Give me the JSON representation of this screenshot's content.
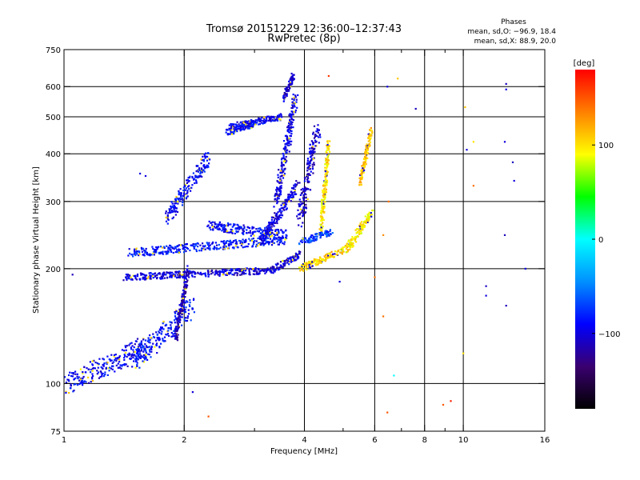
{
  "chart_data": {
    "type": "scatter",
    "title": "Tromsø 20151229 12:36:00–12:37:43",
    "subtitle": "RwPretec (8p)",
    "xlabel": "Frequency [MHz]",
    "ylabel": "Stationary phase Virtual Height [km]",
    "x_scale": "log",
    "y_scale": "log",
    "xlim": [
      1,
      16
    ],
    "ylim": [
      75,
      750
    ],
    "grid": true,
    "x_ticks": [
      {
        "value": 1,
        "label": "1"
      },
      {
        "value": 2,
        "label": "2"
      },
      {
        "value": 4,
        "label": "4"
      },
      {
        "value": 6,
        "label": "6"
      },
      {
        "value": 8,
        "label": "8"
      },
      {
        "value": 10,
        "label": "10"
      },
      {
        "value": 16,
        "label": "16"
      }
    ],
    "x_minor": [
      3,
      5,
      7,
      9
    ],
    "x_grid": [
      2,
      4,
      6,
      8,
      10
    ],
    "y_ticks": [
      {
        "value": 75,
        "label": "75"
      },
      {
        "value": 100,
        "label": "100"
      },
      {
        "value": 200,
        "label": "200"
      },
      {
        "value": 300,
        "label": "300"
      },
      {
        "value": 400,
        "label": "400"
      },
      {
        "value": 500,
        "label": "500"
      },
      {
        "value": 600,
        "label": "600"
      },
      {
        "value": 750,
        "label": "750"
      }
    ],
    "y_grid": [
      100,
      200,
      300,
      400,
      500,
      600
    ],
    "stats": {
      "header": "Phases",
      "line_o": "mean, sd,O: −96.9, 18.4",
      "line_x": "mean, sd,X:  88.9, 20.0"
    },
    "colorbar": {
      "label": "[deg]",
      "range": [
        -180,
        180
      ],
      "ticks": [
        {
          "value": 100,
          "label": "100"
        },
        {
          "value": 0,
          "label": "0"
        },
        {
          "value": -100,
          "label": "−100"
        }
      ],
      "colors": [
        "#000000",
        "#3a0070",
        "#0000ff",
        "#0090ff",
        "#00ffff",
        "#00ff00",
        "#ffff00",
        "#ff8000",
        "#ff0000"
      ]
    },
    "series": [
      {
        "traces": [
          {
            "f1": 1.42,
            "f2": 3.3,
            "h1": 190,
            "h2": 198,
            "ph": -100,
            "spread": 0.04
          },
          {
            "f1": 3.3,
            "f2": 3.9,
            "h1": 198,
            "h2": 218,
            "ph": -100,
            "spread": 0.04
          },
          {
            "f1": 1.45,
            "f2": 3.6,
            "h1": 220,
            "h2": 238,
            "ph": -85,
            "spread": 0.05
          },
          {
            "f1": 3.1,
            "f2": 3.85,
            "h1": 235,
            "h2": 330,
            "ph": -100,
            "spread": 0.06
          },
          {
            "f1": 3.4,
            "f2": 3.8,
            "h1": 300,
            "h2": 560,
            "ph": -100,
            "spread": 0.08
          },
          {
            "f1": 2.3,
            "f2": 3.6,
            "h1": 260,
            "h2": 245,
            "ph": -90,
            "spread": 0.06
          },
          {
            "f1": 3.55,
            "f2": 3.75,
            "h1": 560,
            "h2": 640,
            "ph": -105,
            "spread": 0.04
          },
          {
            "f1": 2.6,
            "f2": 3.5,
            "h1": 470,
            "h2": 500,
            "ph": -95,
            "spread": 0.04
          },
          {
            "f1": 2.55,
            "f2": 3.0,
            "h1": 455,
            "h2": 480,
            "ph": -90,
            "spread": 0.04
          },
          {
            "f1": 3.9,
            "f2": 5.3,
            "h1": 200,
            "h2": 230,
            "ph": 105,
            "spread": 0.04
          },
          {
            "f1": 5.1,
            "f2": 5.9,
            "h1": 225,
            "h2": 280,
            "ph": 95,
            "spread": 0.05
          },
          {
            "f1": 4.4,
            "f2": 4.6,
            "h1": 250,
            "h2": 430,
            "ph": 100,
            "spread": 0.05
          },
          {
            "f1": 5.5,
            "f2": 5.9,
            "h1": 330,
            "h2": 470,
            "ph": 110,
            "spread": 0.04
          },
          {
            "f1": 3.9,
            "f2": 4.7,
            "h1": 235,
            "h2": 250,
            "ph": -70,
            "spread": 0.04
          },
          {
            "f1": 1.02,
            "f2": 1.6,
            "h1": 100,
            "h2": 125,
            "ph": -95,
            "spread": 0.12
          },
          {
            "f1": 1.5,
            "f2": 2.1,
            "h1": 115,
            "h2": 160,
            "ph": -85,
            "spread": 0.12
          },
          {
            "f1": 1.9,
            "f2": 2.05,
            "h1": 130,
            "h2": 200,
            "ph": -110,
            "spread": 0.05
          },
          {
            "f1": 3.9,
            "f2": 4.3,
            "h1": 270,
            "h2": 460,
            "ph": -105,
            "spread": 0.1
          },
          {
            "f1": 1.8,
            "f2": 2.3,
            "h1": 270,
            "h2": 390,
            "ph": -90,
            "spread": 0.08
          }
        ],
        "scatter": [
          {
            "x": 1.55,
            "y": 355,
            "ph": -100
          },
          {
            "x": 1.6,
            "y": 350,
            "ph": -100
          },
          {
            "x": 1.05,
            "y": 193,
            "ph": -110
          },
          {
            "x": 6.45,
            "y": 600,
            "ph": -100
          },
          {
            "x": 6.85,
            "y": 630,
            "ph": 110
          },
          {
            "x": 4.6,
            "y": 640,
            "ph": 160
          },
          {
            "x": 7.6,
            "y": 525,
            "ph": -110
          },
          {
            "x": 8.9,
            "y": 88,
            "ph": 150
          },
          {
            "x": 9.3,
            "y": 90,
            "ph": 170
          },
          {
            "x": 6.45,
            "y": 84,
            "ph": 150
          },
          {
            "x": 10.6,
            "y": 430,
            "ph": 100
          },
          {
            "x": 10.2,
            "y": 410,
            "ph": -100
          },
          {
            "x": 12.8,
            "y": 610,
            "ph": -110
          },
          {
            "x": 12.8,
            "y": 590,
            "ph": -100
          },
          {
            "x": 12.7,
            "y": 430,
            "ph": -100
          },
          {
            "x": 13.3,
            "y": 380,
            "ph": -110
          },
          {
            "x": 13.4,
            "y": 340,
            "ph": -100
          },
          {
            "x": 12.7,
            "y": 245,
            "ph": -110
          },
          {
            "x": 12.8,
            "y": 160,
            "ph": -110
          },
          {
            "x": 14.3,
            "y": 200,
            "ph": -100
          },
          {
            "x": 10.0,
            "y": 120,
            "ph": 100
          },
          {
            "x": 10.6,
            "y": 330,
            "ph": 140
          },
          {
            "x": 6.3,
            "y": 245,
            "ph": 130
          },
          {
            "x": 6.5,
            "y": 300,
            "ph": 140
          },
          {
            "x": 4.9,
            "y": 185,
            "ph": -100
          },
          {
            "x": 6.0,
            "y": 190,
            "ph": 140
          },
          {
            "x": 6.3,
            "y": 150,
            "ph": 140
          },
          {
            "x": 6.7,
            "y": 105,
            "ph": 0
          },
          {
            "x": 2.3,
            "y": 82,
            "ph": 150
          },
          {
            "x": 2.1,
            "y": 95,
            "ph": -100
          },
          {
            "x": 10.1,
            "y": 530,
            "ph": 110
          },
          {
            "x": 11.4,
            "y": 170,
            "ph": -100
          },
          {
            "x": 11.4,
            "y": 180,
            "ph": -110
          }
        ]
      }
    ]
  }
}
